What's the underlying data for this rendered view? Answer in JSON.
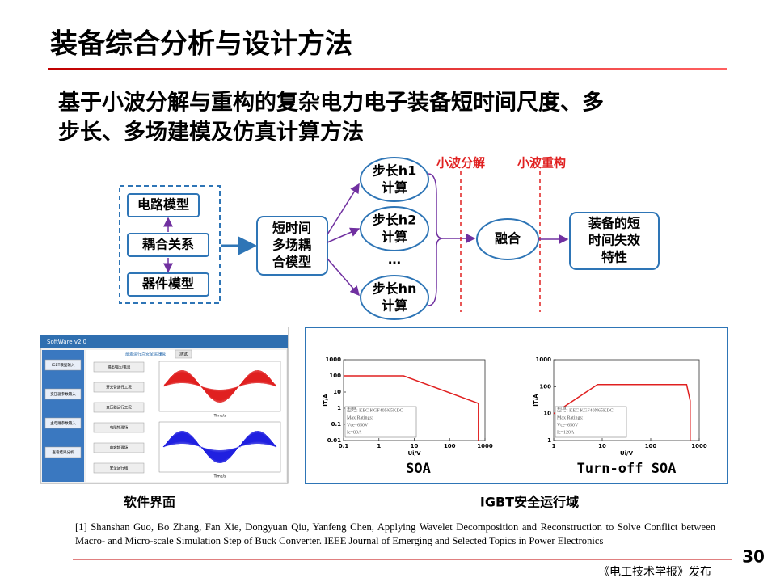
{
  "header": {
    "title": "装备综合分析与设计方法",
    "page_number": "30"
  },
  "subtitle": [
    "基于小波分解与重构的复杂电力电子装备短时间尺度、多",
    "步长、多场建模及仿真计算方法"
  ],
  "diagram": {
    "inputs": [
      "电路模型",
      "耦合关系",
      "器件模型"
    ],
    "model": [
      "短时间",
      "多场耦",
      "合模型"
    ],
    "steps": [
      [
        "步长h1",
        "计算"
      ],
      [
        "步长h2",
        "计算"
      ],
      [
        "步长hn",
        "计算"
      ]
    ],
    "ellipsis": "…",
    "decompose": "小波分解",
    "reconstruct": "小波重构",
    "fusion": "融合",
    "output": [
      "装备的短",
      "时间失效",
      "特性"
    ]
  },
  "software": {
    "title": "SoftWare v2.0",
    "heading": "最差运行点安全运行域",
    "tabs": [
      "是",
      "测试"
    ],
    "left_buttons": [
      "IGBT模型输入",
      "变压器参数输入",
      "主电路参数输入",
      "查看结果分析"
    ],
    "right_buttons": [
      "输出电压/电流",
      "开关管运行工况",
      "变压器运行工况",
      "电阻物理场",
      "电容物理场",
      "安全运行域"
    ],
    "xlabel": "Time/s",
    "caption": "软件界面"
  },
  "soa": {
    "caption": "IGBT安全运行域",
    "charts": [
      {
        "type": "line",
        "caption": "SOA",
        "xlabel": "Ui/V",
        "ylabel": "IT/A",
        "log": true,
        "xlim": [
          0.1,
          1000
        ],
        "xticks": [
          0.1,
          1,
          10,
          100,
          1000
        ],
        "ylim": [
          0.01,
          1000
        ],
        "yticks": [
          0.01,
          0.1,
          1,
          10,
          100,
          1000
        ],
        "x": [
          0.1,
          5,
          650,
          650
        ],
        "values": [
          100,
          100,
          2,
          0.01
        ],
        "color": "#e02020",
        "legend": [
          "型号: KEC KGF40N65KDC",
          "Max Ratings:",
          "Vce=650V",
          "Ic=80A"
        ]
      },
      {
        "type": "line",
        "caption": "Turn-off SOA",
        "xlabel": "Ui/V",
        "ylabel": "IT/A",
        "log": true,
        "xlim": [
          1,
          1000
        ],
        "xticks": [
          1,
          10,
          100,
          1000
        ],
        "ylim": [
          1,
          1000
        ],
        "yticks": [
          1,
          10,
          100,
          1000
        ],
        "x": [
          1,
          8,
          550,
          650,
          650
        ],
        "values": [
          10,
          120,
          120,
          30,
          1
        ],
        "color": "#e02020",
        "legend": [
          "型号: KEC KGF40N65KDC",
          "Max Ratings:",
          "Vce=650V",
          "Ic=120A"
        ]
      }
    ]
  },
  "reference": "[1] Shanshan Guo, Bo Zhang, Fan Xie, Dongyuan Qiu, Yanfeng Chen, Applying Wavelet Decomposition and Reconstruction to Solve Conflict between Macro- and Micro-scale Simulation Step of Buck Converter. IEEE Journal of Emerging and Selected Topics in Power Electronics",
  "footer": "《电工技术学报》发布"
}
